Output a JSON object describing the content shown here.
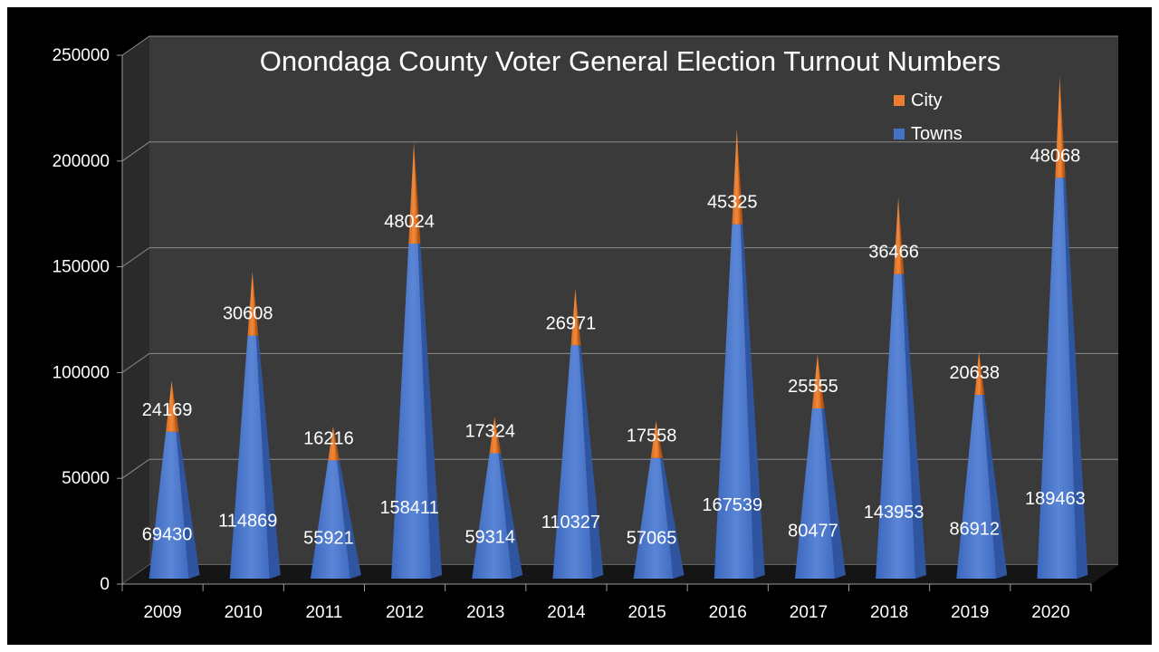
{
  "chart_data": {
    "type": "bar",
    "title": "Onondaga County Voter General Election Turnout Numbers",
    "categories": [
      "2009",
      "2010",
      "2011",
      "2012",
      "2013",
      "2014",
      "2015",
      "2016",
      "2017",
      "2018",
      "2019",
      "2020"
    ],
    "series": [
      {
        "name": "Towns",
        "color": "#4472c4",
        "values": [
          69430,
          114869,
          55921,
          158411,
          59314,
          110327,
          57065,
          167539,
          80477,
          143953,
          86912,
          189463
        ]
      },
      {
        "name": "City",
        "color": "#ed7d31",
        "values": [
          24169,
          30608,
          16216,
          48024,
          17324,
          26971,
          17558,
          45325,
          25555,
          36466,
          20638,
          48068
        ]
      }
    ],
    "stacked": true,
    "ylim": [
      0,
      250000
    ],
    "yticks": [
      0,
      50000,
      100000,
      150000,
      200000,
      250000
    ],
    "grid": true,
    "legend_position": "top-right",
    "legend_order": [
      "City",
      "Towns"
    ],
    "colors": {
      "background": "#000000",
      "plot_wall": "#3a3a3a",
      "side_wall": "#2a2a2a",
      "gridline": "#8c8c8c",
      "text": "#ffffff"
    }
  }
}
